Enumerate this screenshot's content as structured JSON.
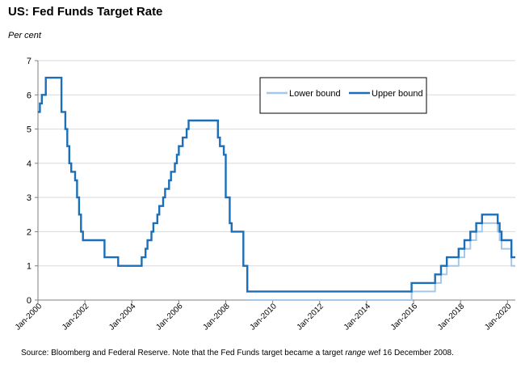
{
  "title": "US: Fed Funds Target Rate",
  "unit": "Per cent",
  "source": {
    "before": "Source: Bloomberg and Federal Reserve.  Note that the Fed Funds target became a target ",
    "emphasis": "range",
    "after": " wef 16 December 2008."
  },
  "colors": {
    "lower": "#a6c8e8",
    "upper": "#1b6fb8",
    "axis": "#7f7f7f"
  },
  "chart_data": {
    "type": "line",
    "title": "US: Fed Funds Target Rate",
    "ylabel": "Per cent",
    "xlabel": "",
    "ylim": [
      0,
      7
    ],
    "xlim": [
      "2000-01",
      "2020-05"
    ],
    "yticks": [
      "0",
      "1",
      "2",
      "3",
      "4",
      "5",
      "6",
      "7"
    ],
    "xticks": [
      "Jan-2000",
      "Jan-2002",
      "Jan-2004",
      "Jan-2006",
      "Jan-2008",
      "Jan-2010",
      "Jan-2012",
      "Jan-2014",
      "Jan-2016",
      "Jan-2018",
      "Jan-2020"
    ],
    "legend": {
      "position": "top-right",
      "entries": [
        "Lower bound",
        "Upper bound"
      ]
    },
    "series": [
      {
        "name": "Upper bound",
        "points": [
          [
            "2000-01",
            5.5
          ],
          [
            "2000-02",
            5.75
          ],
          [
            "2000-03",
            6.0
          ],
          [
            "2000-05",
            6.5
          ],
          [
            "2001-01",
            6.0
          ],
          [
            "2001-01",
            5.5
          ],
          [
            "2001-03",
            5.0
          ],
          [
            "2001-04",
            4.5
          ],
          [
            "2001-05",
            4.0
          ],
          [
            "2001-06",
            3.75
          ],
          [
            "2001-08",
            3.5
          ],
          [
            "2001-09",
            3.0
          ],
          [
            "2001-10",
            2.5
          ],
          [
            "2001-11",
            2.0
          ],
          [
            "2001-12",
            1.75
          ],
          [
            "2002-11",
            1.25
          ],
          [
            "2003-06",
            1.0
          ],
          [
            "2004-06",
            1.25
          ],
          [
            "2004-08",
            1.5
          ],
          [
            "2004-09",
            1.75
          ],
          [
            "2004-11",
            2.0
          ],
          [
            "2004-12",
            2.25
          ],
          [
            "2005-02",
            2.5
          ],
          [
            "2005-03",
            2.75
          ],
          [
            "2005-05",
            3.0
          ],
          [
            "2005-06",
            3.25
          ],
          [
            "2005-08",
            3.5
          ],
          [
            "2005-09",
            3.75
          ],
          [
            "2005-11",
            4.0
          ],
          [
            "2005-12",
            4.25
          ],
          [
            "2006-01",
            4.5
          ],
          [
            "2006-03",
            4.75
          ],
          [
            "2006-05",
            5.0
          ],
          [
            "2006-06",
            5.25
          ],
          [
            "2007-09",
            4.75
          ],
          [
            "2007-10",
            4.5
          ],
          [
            "2007-12",
            4.25
          ],
          [
            "2008-01",
            3.5
          ],
          [
            "2008-01",
            3.0
          ],
          [
            "2008-03",
            2.25
          ],
          [
            "2008-04",
            2.0
          ],
          [
            "2008-10",
            1.5
          ],
          [
            "2008-10",
            1.0
          ],
          [
            "2008-12",
            0.25
          ],
          [
            "2015-12",
            0.5
          ],
          [
            "2016-12",
            0.75
          ],
          [
            "2017-03",
            1.0
          ],
          [
            "2017-06",
            1.25
          ],
          [
            "2017-12",
            1.5
          ],
          [
            "2018-03",
            1.75
          ],
          [
            "2018-06",
            2.0
          ],
          [
            "2018-09",
            2.25
          ],
          [
            "2018-12",
            2.5
          ],
          [
            "2019-08",
            2.25
          ],
          [
            "2019-09",
            2.0
          ],
          [
            "2019-10",
            1.75
          ],
          [
            "2020-03",
            1.25
          ]
        ]
      },
      {
        "name": "Lower bound",
        "points": [
          [
            "2008-12",
            0.0
          ],
          [
            "2015-12",
            0.25
          ],
          [
            "2016-12",
            0.5
          ],
          [
            "2017-03",
            0.75
          ],
          [
            "2017-06",
            1.0
          ],
          [
            "2017-12",
            1.25
          ],
          [
            "2018-03",
            1.5
          ],
          [
            "2018-06",
            1.75
          ],
          [
            "2018-09",
            2.0
          ],
          [
            "2018-12",
            2.25
          ],
          [
            "2019-08",
            2.0
          ],
          [
            "2019-09",
            1.75
          ],
          [
            "2019-10",
            1.5
          ],
          [
            "2020-03",
            1.0
          ]
        ]
      }
    ]
  }
}
